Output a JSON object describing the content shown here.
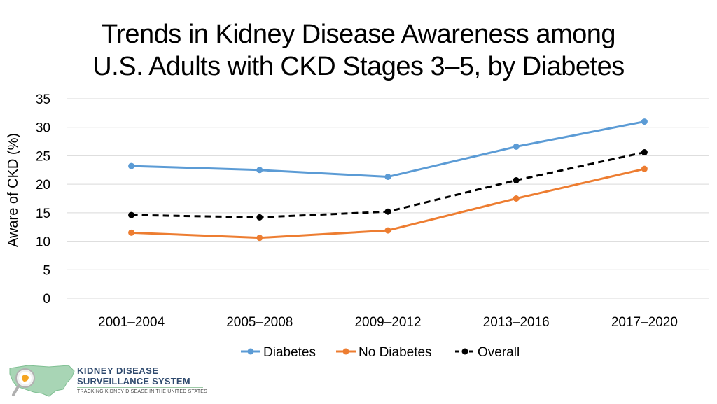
{
  "title_lines": [
    "Trends in Kidney Disease Awareness among",
    "U.S. Adults with CKD Stages 3–5, by Diabetes"
  ],
  "chart_data": {
    "type": "line",
    "title": "Trends in Kidney Disease Awareness among U.S. Adults with CKD Stages 3–5, by Diabetes",
    "xlabel": "",
    "ylabel": "Aware of CKD (%)",
    "ylim": [
      0,
      35
    ],
    "yticks": [
      0,
      5,
      10,
      15,
      20,
      25,
      30,
      35
    ],
    "grid": true,
    "legend": "bottom",
    "categories": [
      "2001–2004",
      "2005–2008",
      "2009–2012",
      "2013–2016",
      "2017–2020"
    ],
    "series": [
      {
        "name": "Diabetes",
        "color": "#5b9bd5",
        "dashed": false,
        "values": [
          23.2,
          22.5,
          21.3,
          26.6,
          31.0
        ]
      },
      {
        "name": "No Diabetes",
        "color": "#ed7d31",
        "dashed": false,
        "values": [
          11.5,
          10.6,
          11.9,
          17.5,
          22.7
        ]
      },
      {
        "name": "Overall",
        "color": "#000000",
        "dashed": true,
        "values": [
          14.6,
          14.2,
          15.2,
          20.7,
          25.6
        ]
      }
    ]
  },
  "logo": {
    "line1": "KIDNEY DISEASE",
    "line2": "SURVEILLANCE SYSTEM",
    "line3": "TRACKING KIDNEY DISEASE IN THE UNITED STATES"
  }
}
